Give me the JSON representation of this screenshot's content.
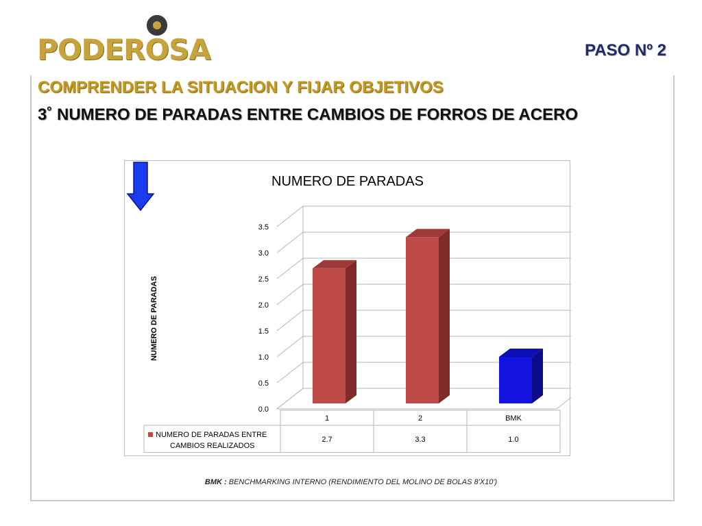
{
  "header": {
    "logo_text": "PODEROSA",
    "paso": "PASO  Nº 2",
    "subtitle": "COMPRENDER LA SITUACION Y FIJAR OBJETIVOS",
    "heading": "3˚  NUMERO DE PARADAS ENTRE CAMBIOS DE FORROS DE ACERO"
  },
  "colors": {
    "bar_red": "#be4b48",
    "bar_red_side": "#7f2b29",
    "bar_red_top": "#9d3a37",
    "bar_blue": "#1414e0",
    "bar_blue_side": "#0b0b8a",
    "bar_blue_top": "#0e0eb8",
    "arrow_blue": "#1a3cf0"
  },
  "chart_data": {
    "type": "bar",
    "title": "NUMERO DE PARADAS",
    "ylabel": "NUMERO DE PARADAS",
    "xlabel": "",
    "categories": [
      "1",
      "2",
      "BMK"
    ],
    "series": [
      {
        "name": "NUMERO DE PARADAS ENTRE CAMBIOS REALIZADOS",
        "values": [
          2.7,
          3.3,
          1.0
        ]
      }
    ],
    "value_labels": [
      "2.7",
      "3.3",
      "1.0"
    ],
    "ylim": [
      0,
      3.5
    ],
    "yticks": [
      "0.0",
      "0.5",
      "1.0",
      "1.5",
      "2.0",
      "2.5",
      "3.0",
      "3.5"
    ],
    "grid": true,
    "legend": "data-table"
  },
  "footnote": {
    "label": "BMK :",
    "text": " BENCHMARKING INTERNO (RENDIMIENTO DEL MOLINO DE BOLAS 8'X10')"
  }
}
